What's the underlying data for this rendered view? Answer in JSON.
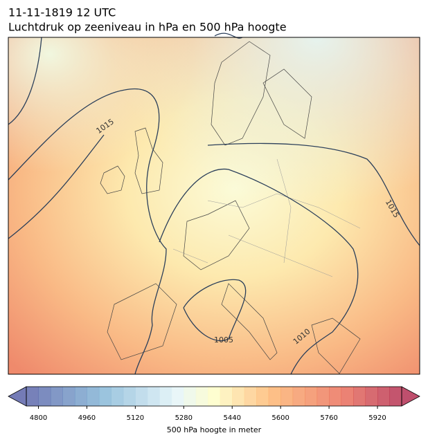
{
  "header": {
    "date": "11-11-1819 12 UTC",
    "title": "Luchtdruk op zeeniveau in hPa en 500 hPa hoogte"
  },
  "map": {
    "contour_labels": [
      "1015",
      "1015",
      "1005",
      "1010"
    ]
  },
  "colorbar": {
    "label": "500 hPa hoogte in meter",
    "lim": [
      4760,
      6000
    ],
    "ticks": [
      4800,
      4960,
      5120,
      5280,
      5440,
      5600,
      5760,
      5920
    ]
  }
}
